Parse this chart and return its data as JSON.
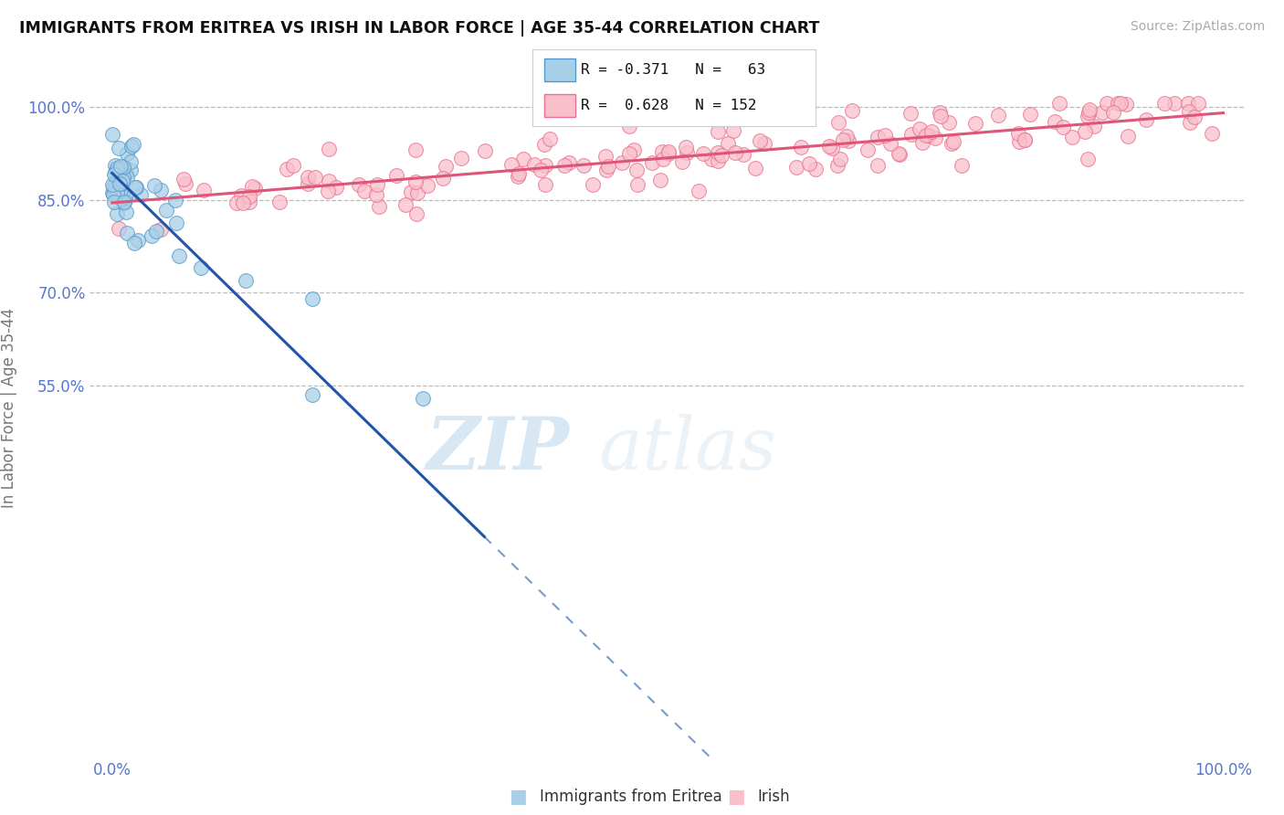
{
  "title": "IMMIGRANTS FROM ERITREA VS IRISH IN LABOR FORCE | AGE 35-44 CORRELATION CHART",
  "source": "Source: ZipAtlas.com",
  "ylabel": "In Labor Force | Age 35-44",
  "xlim": [
    -0.02,
    1.02
  ],
  "ylim": [
    -0.05,
    1.08
  ],
  "yticks": [
    0.55,
    0.7,
    0.85,
    1.0
  ],
  "ytick_labels": [
    "55.0%",
    "70.0%",
    "85.0%",
    "100.0%"
  ],
  "xtick_labels": [
    "0.0%",
    "100.0%"
  ],
  "eritrea_color": "#a8cfe8",
  "eritrea_edge_color": "#5599cc",
  "irish_color": "#f9c0cc",
  "irish_edge_color": "#e87090",
  "trend_eritrea_color": "#2255aa",
  "trend_irish_color": "#dd5577",
  "background_color": "#ffffff",
  "grid_color": "#bbbbbb",
  "title_color": "#111111",
  "tick_color": "#5577cc",
  "watermark1": "ZIP",
  "watermark2": "atlas",
  "legend_eritrea_label": "R = -0.371   N =   63",
  "legend_irish_label": "R =  0.628   N = 152",
  "bottom_legend_eritrea": "Immigrants from Eritrea",
  "bottom_legend_irish": "Irish"
}
